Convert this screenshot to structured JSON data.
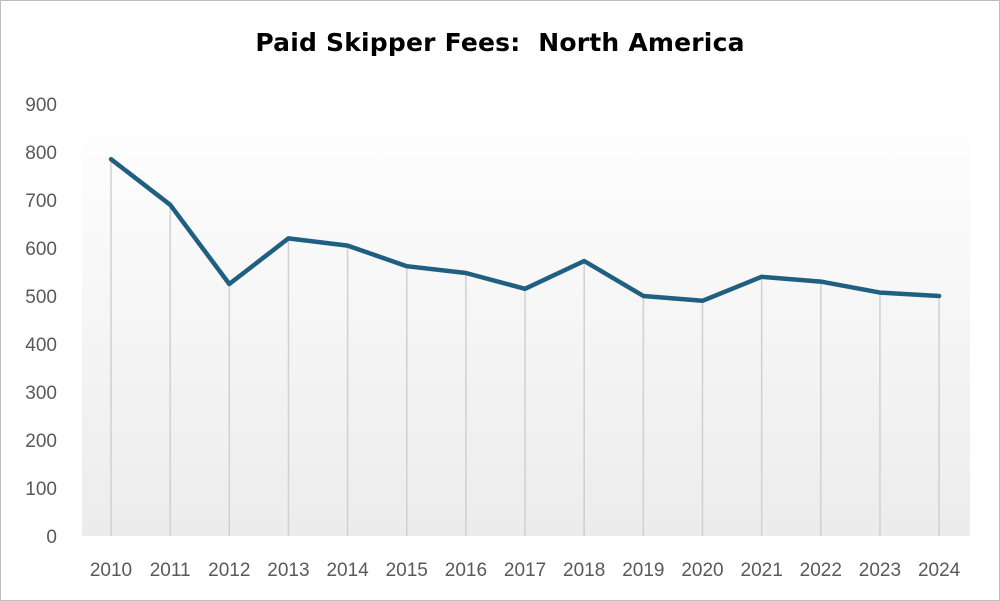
{
  "chart_data": {
    "type": "line",
    "title": "Paid Skipper Fees:  North America",
    "xlabel": "",
    "ylabel": "",
    "categories": [
      "2010",
      "2011",
      "2012",
      "2013",
      "2014",
      "2015",
      "2016",
      "2017",
      "2018",
      "2019",
      "2020",
      "2021",
      "2022",
      "2023",
      "2024"
    ],
    "series": [
      {
        "values": [
          785,
          690,
          525,
          620,
          605,
          562,
          548,
          515,
          573,
          500,
          490,
          540,
          530,
          507,
          500
        ]
      }
    ],
    "ylim": [
      0,
      900
    ],
    "yticks": [
      "0",
      "100",
      "200",
      "300",
      "400",
      "500",
      "600",
      "700",
      "800",
      "900"
    ],
    "grid": false,
    "drop_lines": true,
    "legend": "none",
    "colors": {
      "line": "#1f5f80",
      "drop_line": "#d0d0d0",
      "plot_bg_top": "#ffffff",
      "plot_bg_bottom": "#ececec"
    }
  }
}
